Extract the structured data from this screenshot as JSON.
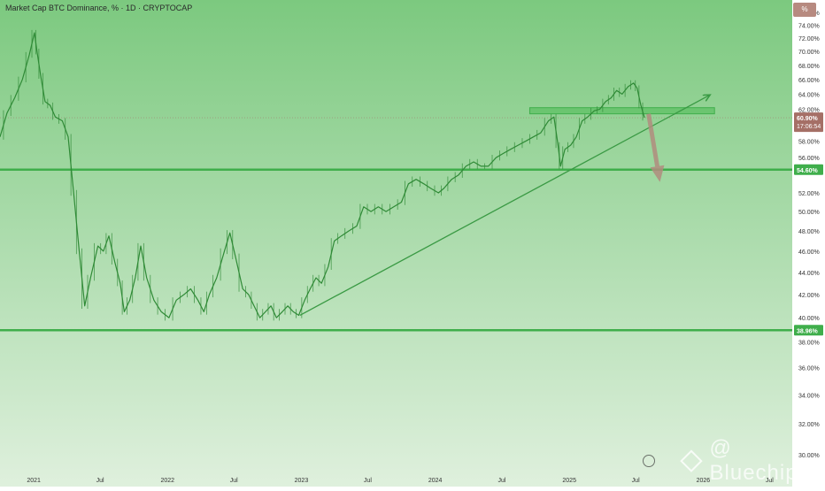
{
  "header": {
    "title": "Market Cap BTC Dominance, % · 1D · CRYPTOCAP",
    "scale_badge": "%"
  },
  "watermark": {
    "text": "@ Bluechip"
  },
  "colors": {
    "background_top": "#7cc97f",
    "background_bottom": "#dff0dd",
    "support_line": "#3fae4b",
    "trend_line": "#3a9a44",
    "candle": "#2f8a36",
    "zone_fill": "#5ec064",
    "arrow": "#b08c7e",
    "price_label": "#a56f66",
    "support_label": "#3fae4b"
  },
  "chart_data": {
    "type": "line",
    "title": "",
    "xlabel": "",
    "ylabel": "",
    "ylim": [
      29.0,
      78.0
    ],
    "xlim": [
      "2020-10-01",
      "2026-09-01"
    ],
    "y_scale": "log",
    "x_ticks": [
      {
        "date": "2021-01-01",
        "label": "2021"
      },
      {
        "date": "2021-07-01",
        "label": "Jul"
      },
      {
        "date": "2022-01-01",
        "label": "2022"
      },
      {
        "date": "2022-07-01",
        "label": "Jul"
      },
      {
        "date": "2023-01-01",
        "label": "2023"
      },
      {
        "date": "2023-07-01",
        "label": "Jul"
      },
      {
        "date": "2024-01-01",
        "label": "2024"
      },
      {
        "date": "2024-07-01",
        "label": "Jul"
      },
      {
        "date": "2025-01-01",
        "label": "2025"
      },
      {
        "date": "2025-07-01",
        "label": "Jul"
      },
      {
        "date": "2026-01-01",
        "label": "2026"
      },
      {
        "date": "2026-07-01",
        "label": "Jul"
      }
    ],
    "y_ticks": [
      {
        "value": 76,
        "label": "76.00%"
      },
      {
        "value": 74,
        "label": "74.00%"
      },
      {
        "value": 72,
        "label": "72.00%"
      },
      {
        "value": 70,
        "label": "70.00%"
      },
      {
        "value": 68,
        "label": "68.00%"
      },
      {
        "value": 66,
        "label": "66.00%"
      },
      {
        "value": 64,
        "label": "64.00%"
      },
      {
        "value": 62,
        "label": "62.00%"
      },
      {
        "value": 58,
        "label": "58.00%"
      },
      {
        "value": 56,
        "label": "56.00%"
      },
      {
        "value": 52,
        "label": "52.00%"
      },
      {
        "value": 50,
        "label": "50.00%"
      },
      {
        "value": 48,
        "label": "48.00%"
      },
      {
        "value": 46,
        "label": "46.00%"
      },
      {
        "value": 44,
        "label": "44.00%"
      },
      {
        "value": 42,
        "label": "42.00%"
      },
      {
        "value": 40,
        "label": "40.00%"
      },
      {
        "value": 38,
        "label": "38.00%"
      },
      {
        "value": 36,
        "label": "36.00%"
      },
      {
        "value": 34,
        "label": "34.00%"
      },
      {
        "value": 32,
        "label": "32.00%"
      },
      {
        "value": 30,
        "label": "30.00%"
      }
    ],
    "series": [
      {
        "points": [
          [
            "2020-10-01",
            58.5
          ],
          [
            "2020-10-20",
            61.5
          ],
          [
            "2020-11-10",
            63.5
          ],
          [
            "2020-12-01",
            66.0
          ],
          [
            "2020-12-20",
            69.5
          ],
          [
            "2021-01-03",
            72.8
          ],
          [
            "2021-01-10",
            70.0
          ],
          [
            "2021-01-20",
            66.5
          ],
          [
            "2021-02-01",
            63.0
          ],
          [
            "2021-02-15",
            62.5
          ],
          [
            "2021-03-01",
            61.0
          ],
          [
            "2021-03-20",
            60.5
          ],
          [
            "2021-04-05",
            58.5
          ],
          [
            "2021-04-20",
            52.0
          ],
          [
            "2021-05-05",
            46.0
          ],
          [
            "2021-05-20",
            41.0
          ],
          [
            "2021-06-05",
            43.5
          ],
          [
            "2021-06-25",
            46.5
          ],
          [
            "2021-07-10",
            46.0
          ],
          [
            "2021-07-25",
            47.5
          ],
          [
            "2021-08-10",
            45.0
          ],
          [
            "2021-08-25",
            43.0
          ],
          [
            "2021-09-05",
            40.5
          ],
          [
            "2021-09-20",
            41.5
          ],
          [
            "2021-10-05",
            43.5
          ],
          [
            "2021-10-20",
            46.5
          ],
          [
            "2021-11-05",
            43.5
          ],
          [
            "2021-11-25",
            41.5
          ],
          [
            "2021-12-15",
            40.5
          ],
          [
            "2022-01-05",
            40.0
          ],
          [
            "2022-01-25",
            41.5
          ],
          [
            "2022-02-15",
            42.0
          ],
          [
            "2022-03-05",
            42.5
          ],
          [
            "2022-03-25",
            41.5
          ],
          [
            "2022-04-10",
            40.5
          ],
          [
            "2022-04-25",
            42.0
          ],
          [
            "2022-05-15",
            43.5
          ],
          [
            "2022-06-05",
            46.0
          ],
          [
            "2022-06-20",
            47.8
          ],
          [
            "2022-07-05",
            45.5
          ],
          [
            "2022-07-25",
            42.5
          ],
          [
            "2022-08-10",
            42.0
          ],
          [
            "2022-08-25",
            41.0
          ],
          [
            "2022-09-10",
            40.0
          ],
          [
            "2022-09-25",
            40.5
          ],
          [
            "2022-10-10",
            41.0
          ],
          [
            "2022-10-25",
            40.0
          ],
          [
            "2022-11-10",
            40.5
          ],
          [
            "2022-11-25",
            41.0
          ],
          [
            "2022-12-10",
            40.5
          ],
          [
            "2022-12-25",
            40.2
          ],
          [
            "2023-01-10",
            41.5
          ],
          [
            "2023-01-25",
            42.5
          ],
          [
            "2023-02-10",
            43.5
          ],
          [
            "2023-02-25",
            43.0
          ],
          [
            "2023-03-15",
            44.5
          ],
          [
            "2023-04-01",
            47.0
          ],
          [
            "2023-04-20",
            47.5
          ],
          [
            "2023-05-10",
            48.0
          ],
          [
            "2023-06-01",
            48.5
          ],
          [
            "2023-06-20",
            50.5
          ],
          [
            "2023-07-10",
            50.0
          ],
          [
            "2023-07-30",
            50.5
          ],
          [
            "2023-08-20",
            50.0
          ],
          [
            "2023-09-10",
            50.5
          ],
          [
            "2023-10-01",
            51.0
          ],
          [
            "2023-10-20",
            53.0
          ],
          [
            "2023-11-10",
            53.5
          ],
          [
            "2023-12-01",
            53.0
          ],
          [
            "2023-12-20",
            52.5
          ],
          [
            "2024-01-10",
            52.0
          ],
          [
            "2024-01-25",
            52.5
          ],
          [
            "2024-02-15",
            53.5
          ],
          [
            "2024-03-05",
            54.0
          ],
          [
            "2024-03-25",
            55.0
          ],
          [
            "2024-04-15",
            55.5
          ],
          [
            "2024-05-05",
            55.0
          ],
          [
            "2024-05-25",
            55.0
          ],
          [
            "2024-06-15",
            56.0
          ],
          [
            "2024-07-05",
            56.5
          ],
          [
            "2024-07-25",
            57.0
          ],
          [
            "2024-08-15",
            57.5
          ],
          [
            "2024-09-05",
            58.0
          ],
          [
            "2024-09-25",
            58.5
          ],
          [
            "2024-10-15",
            59.0
          ],
          [
            "2024-11-05",
            60.5
          ],
          [
            "2024-11-20",
            61.0
          ],
          [
            "2024-12-01",
            57.5
          ],
          [
            "2024-12-08",
            55.0
          ],
          [
            "2024-12-20",
            57.0
          ],
          [
            "2025-01-05",
            57.5
          ],
          [
            "2025-01-20",
            58.5
          ],
          [
            "2025-02-05",
            60.5
          ],
          [
            "2025-02-20",
            61.0
          ],
          [
            "2025-03-10",
            61.8
          ],
          [
            "2025-03-25",
            62.0
          ],
          [
            "2025-04-10",
            63.0
          ],
          [
            "2025-04-25",
            63.5
          ],
          [
            "2025-05-10",
            64.5
          ],
          [
            "2025-05-25",
            64.0
          ],
          [
            "2025-06-10",
            65.0
          ],
          [
            "2025-06-25",
            65.5
          ],
          [
            "2025-07-05",
            64.8
          ],
          [
            "2025-07-15",
            62.5
          ],
          [
            "2025-07-25",
            60.9
          ]
        ]
      }
    ],
    "horizontal_levels": [
      {
        "value": 54.6,
        "label": "54.60%"
      },
      {
        "value": 38.96,
        "label": "38.96%"
      }
    ],
    "current_price": {
      "value": 60.9,
      "label": "60.90%",
      "countdown": "17:06:54"
    },
    "trend_line": {
      "from": [
        "2022-12-28",
        40.2
      ],
      "to": [
        "2026-01-20",
        63.9
      ]
    },
    "resistance_zone": {
      "from_date": "2024-09-15",
      "to_date": "2026-02-01",
      "low": 61.4,
      "high": 62.2
    },
    "projection_arrow": {
      "from": [
        "2025-08-05",
        61.4
      ],
      "to": [
        "2025-09-05",
        53.2
      ]
    }
  }
}
